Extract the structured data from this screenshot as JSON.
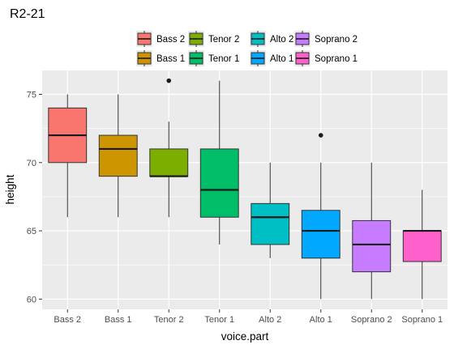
{
  "chart_data": {
    "type": "boxplot",
    "title": "R2-21",
    "xlabel": "voice.part",
    "ylabel": "height",
    "ylim": [
      59.25,
      76.75
    ],
    "yticks": [
      60,
      65,
      70,
      75
    ],
    "grid": true,
    "legend_position": "top",
    "categories": [
      "Bass 2",
      "Bass 1",
      "Tenor 2",
      "Tenor 1",
      "Alto 2",
      "Alto 1",
      "Soprano 2",
      "Soprano 1"
    ],
    "series": [
      {
        "name": "Bass 2",
        "color": "#F8766D",
        "min": 66,
        "q1": 70,
        "median": 72,
        "q3": 74,
        "max": 75,
        "outliers": []
      },
      {
        "name": "Bass 1",
        "color": "#CD9600",
        "min": 66,
        "q1": 69,
        "median": 71,
        "q3": 72,
        "max": 75,
        "outliers": []
      },
      {
        "name": "Tenor 2",
        "color": "#7CAE00",
        "min": 66,
        "q1": 69,
        "median": 69,
        "q3": 71,
        "max": 73,
        "outliers": [
          76
        ]
      },
      {
        "name": "Tenor 1",
        "color": "#00BE67",
        "min": 64,
        "q1": 66,
        "median": 68,
        "q3": 71,
        "max": 76,
        "outliers": []
      },
      {
        "name": "Alto 2",
        "color": "#00BFC4",
        "min": 63,
        "q1": 64,
        "median": 66,
        "q3": 67,
        "max": 70,
        "outliers": []
      },
      {
        "name": "Alto 1",
        "color": "#00A9FF",
        "min": 60,
        "q1": 63,
        "median": 65,
        "q3": 66.5,
        "max": 70,
        "outliers": [
          72
        ]
      },
      {
        "name": "Soprano 2",
        "color": "#C77CFF",
        "min": 60,
        "q1": 62,
        "median": 64,
        "q3": 65.75,
        "max": 70,
        "outliers": []
      },
      {
        "name": "Soprano 1",
        "color": "#FF61CC",
        "min": 60,
        "q1": 62.75,
        "median": 65,
        "q3": 65,
        "max": 68,
        "outliers": []
      }
    ],
    "legend_order": [
      "Bass 2",
      "Tenor 2",
      "Alto 2",
      "Soprano 2",
      "Bass 1",
      "Tenor 1",
      "Alto 1",
      "Soprano 1"
    ]
  }
}
